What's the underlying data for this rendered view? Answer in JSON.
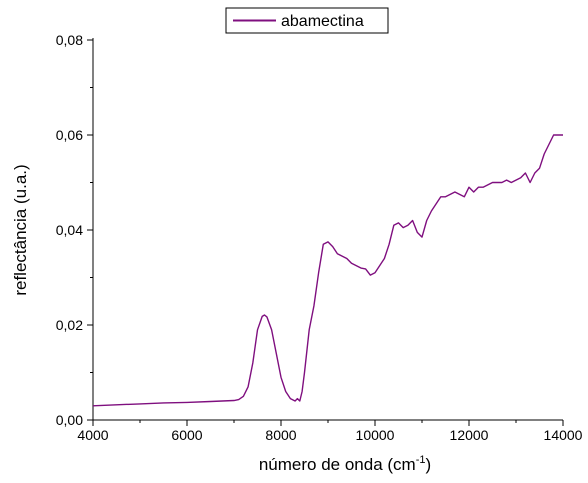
{
  "chart_data": {
    "type": "line",
    "xlabel": "número de onda   (cm",
    "xlabel_sup": "-1",
    "xlabel_close": ")",
    "ylabel": "reflectância (u.a.)",
    "xlim": [
      4000,
      14000
    ],
    "ylim": [
      0,
      0.08
    ],
    "x_ticks": [
      4000,
      6000,
      8000,
      10000,
      12000,
      14000
    ],
    "x_tick_labels": [
      "4000",
      "6000",
      "8000",
      "10000",
      "12000",
      "14000"
    ],
    "y_ticks": [
      0,
      0.02,
      0.04,
      0.06,
      0.08
    ],
    "y_tick_labels": [
      "0,00",
      "0,02",
      "0,04",
      "0,06",
      "0,08"
    ],
    "legend_position": "top-center",
    "grid": false,
    "series": [
      {
        "name": "abamectina",
        "color": "#7f0f7f",
        "x": [
          4000,
          4500,
          5000,
          5500,
          6000,
          6500,
          7000,
          7100,
          7200,
          7300,
          7400,
          7500,
          7600,
          7650,
          7700,
          7800,
          7900,
          8000,
          8100,
          8200,
          8300,
          8350,
          8400,
          8450,
          8500,
          8600,
          8700,
          8800,
          8900,
          9000,
          9100,
          9200,
          9300,
          9400,
          9500,
          9600,
          9700,
          9800,
          9900,
          10000,
          10100,
          10200,
          10300,
          10400,
          10500,
          10600,
          10700,
          10800,
          10900,
          11000,
          11100,
          11200,
          11300,
          11400,
          11500,
          11600,
          11700,
          11800,
          11900,
          12000,
          12100,
          12200,
          12300,
          12400,
          12500,
          12600,
          12700,
          12800,
          12900,
          13000,
          13100,
          13200,
          13300,
          13400,
          13500,
          13600,
          13700,
          13800,
          13900,
          14000
        ],
        "y": [
          0.003,
          0.0032,
          0.0034,
          0.0036,
          0.0037,
          0.0039,
          0.0041,
          0.0043,
          0.005,
          0.007,
          0.012,
          0.019,
          0.0218,
          0.0221,
          0.0217,
          0.019,
          0.014,
          0.009,
          0.006,
          0.0045,
          0.004,
          0.0045,
          0.004,
          0.006,
          0.01,
          0.019,
          0.024,
          0.031,
          0.037,
          0.0375,
          0.0365,
          0.035,
          0.0345,
          0.034,
          0.033,
          0.0325,
          0.032,
          0.0318,
          0.0305,
          0.031,
          0.0325,
          0.034,
          0.037,
          0.041,
          0.0415,
          0.0405,
          0.041,
          0.042,
          0.0395,
          0.0385,
          0.042,
          0.044,
          0.0455,
          0.047,
          0.047,
          0.0475,
          0.048,
          0.0475,
          0.047,
          0.049,
          0.048,
          0.049,
          0.049,
          0.0495,
          0.05,
          0.05,
          0.05,
          0.0505,
          0.05,
          0.0505,
          0.051,
          0.052,
          0.05,
          0.052,
          0.053,
          0.056,
          0.058,
          0.06,
          0.06,
          0.06
        ]
      }
    ]
  }
}
